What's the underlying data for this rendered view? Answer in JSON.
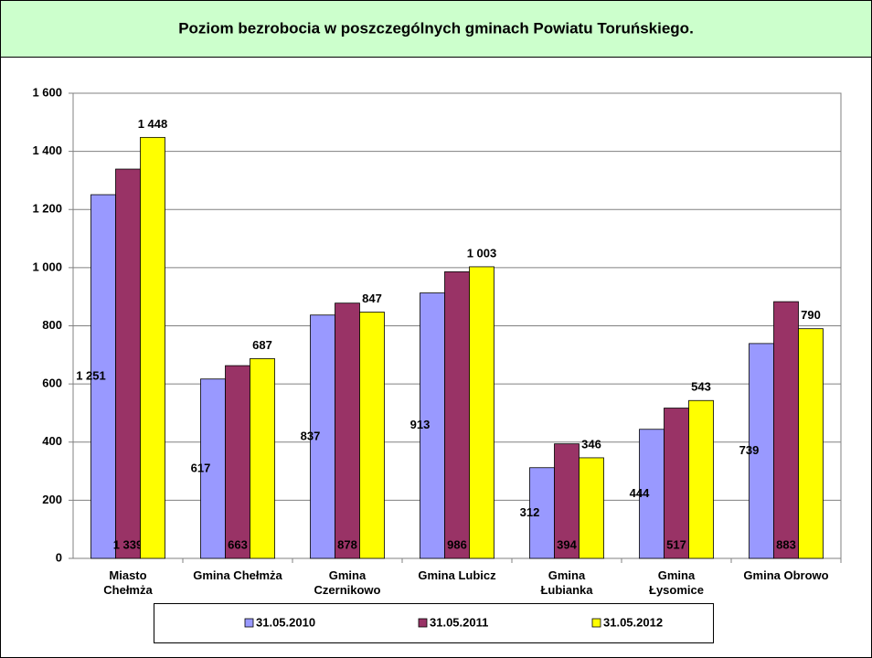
{
  "chart_data": {
    "type": "bar",
    "title": "Poziom bezrobocia w poszczególnych gminach Powiatu Toruńskiego.",
    "categories": [
      "Miasto\nChełmża",
      "Gmina Chełmża",
      "Gmina\nCzernikowo",
      "Gmina Lubicz",
      "Gmina\nŁubianka",
      "Gmina\nŁysomice",
      "Gmina Obrowo"
    ],
    "series": [
      {
        "name": "31.05.2010",
        "color": "#9999ff",
        "values": [
          1251,
          617,
          837,
          913,
          312,
          444,
          739
        ],
        "value_labels": [
          "1 251",
          "617",
          "837",
          "913",
          "312",
          "444",
          "739"
        ]
      },
      {
        "name": "31.05.2011",
        "color": "#993366",
        "values": [
          1339,
          663,
          878,
          986,
          394,
          517,
          883
        ],
        "value_labels": [
          "1 339",
          "663",
          "878",
          "986",
          "394",
          "517",
          "883"
        ]
      },
      {
        "name": "31.05.2012",
        "color": "#ffff00",
        "values": [
          1448,
          687,
          847,
          1003,
          346,
          543,
          790
        ],
        "value_labels": [
          "1 448",
          "687",
          "847",
          "1 003",
          "346",
          "543",
          "790"
        ]
      }
    ],
    "ylim": [
      0,
      1600
    ],
    "yticks": [
      0,
      200,
      400,
      600,
      800,
      {
        "value": 1000,
        "label": "1 000"
      },
      {
        "value": 1200,
        "label": "1 200"
      },
      {
        "value": 1400,
        "label": "1 400"
      },
      {
        "value": 1600,
        "label": "1 600"
      }
    ],
    "grid": true,
    "legend": "bottom"
  }
}
